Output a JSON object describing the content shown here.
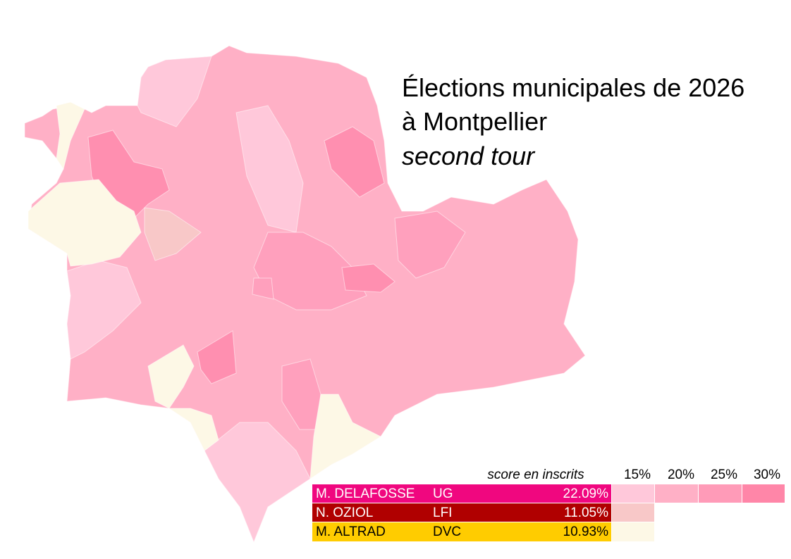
{
  "title": {
    "line1": "Élections municipales de 2026",
    "line2": "à Montpellier",
    "line3": "second tour"
  },
  "legend": {
    "caption": "score en inscrits",
    "scale": [
      "15%",
      "20%",
      "25%",
      "30%"
    ],
    "candidates": [
      {
        "name": "M. DELAFOSSE",
        "party": "UG",
        "score": "22.09%"
      },
      {
        "name": "N. OZIOL",
        "party": "LFI",
        "score": "11.05%"
      },
      {
        "name": "M. ALTRAD",
        "party": "DVC",
        "score": "10.93%"
      }
    ]
  }
}
